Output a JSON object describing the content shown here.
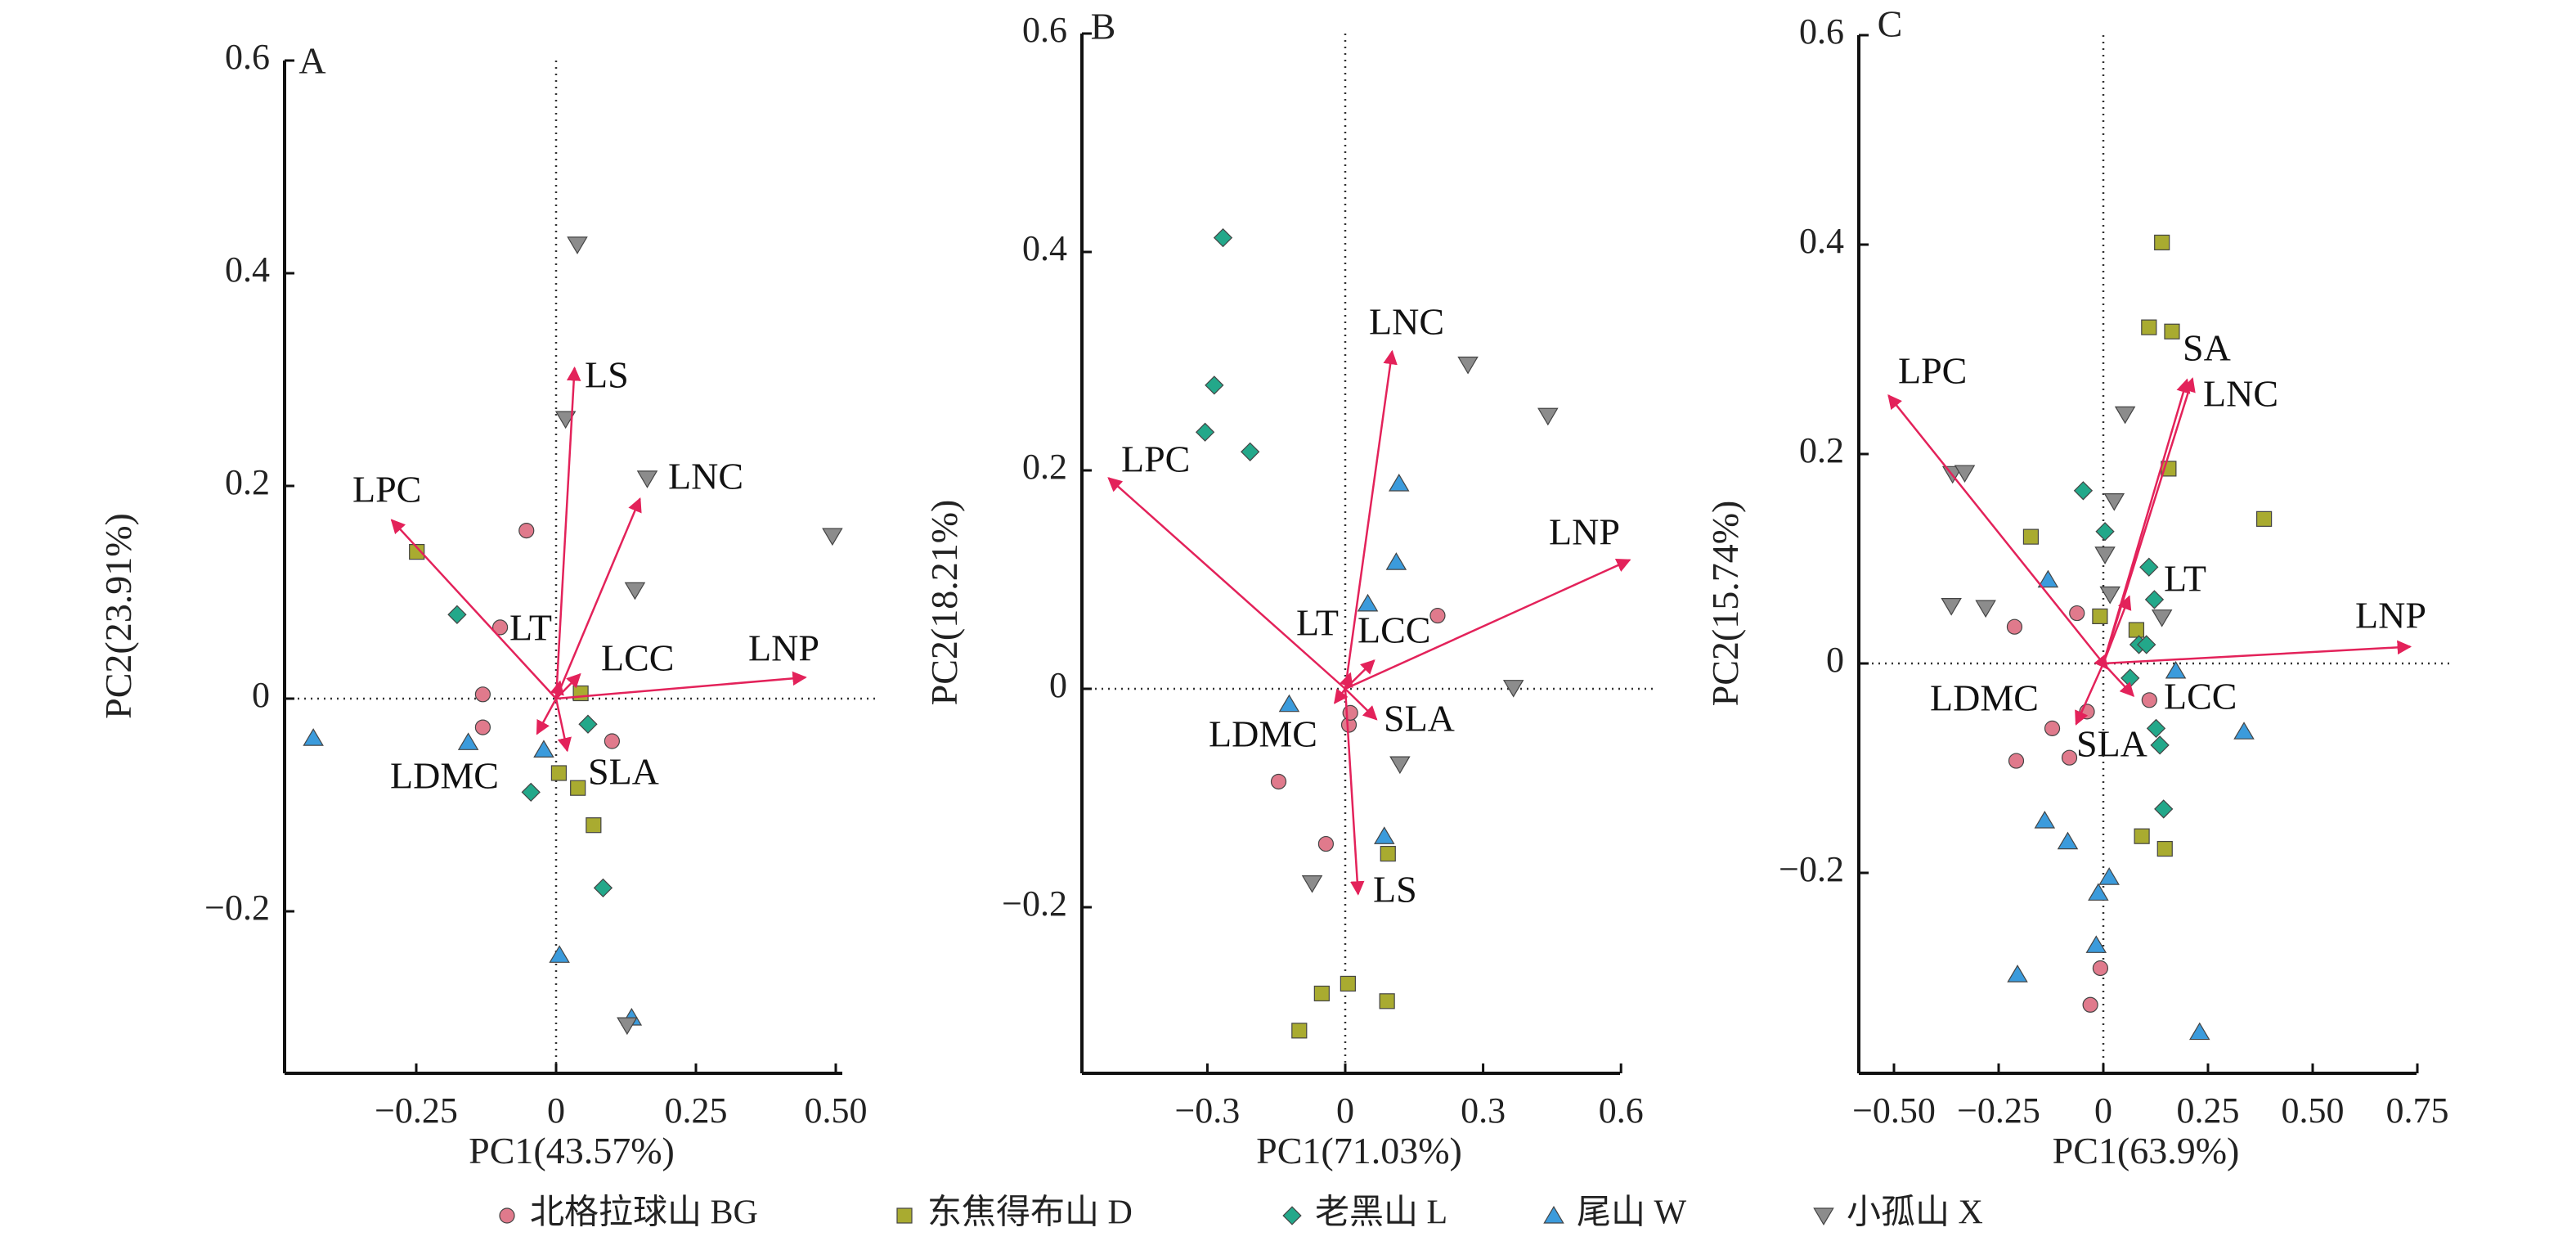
{
  "colors": {
    "BG": "#e07a8c",
    "D": "#a9ab30",
    "L": "#23a88a",
    "W": "#3b9bdc",
    "X": "#8c8c8c",
    "arrow": "#e3225a",
    "axis": "#111111"
  },
  "legend": [
    {
      "group": "BG",
      "marker": "circle",
      "label": "北格拉球山 BG"
    },
    {
      "group": "D",
      "marker": "square",
      "label": "东焦得布山 D"
    },
    {
      "group": "L",
      "marker": "diamond",
      "label": "老黑山 L"
    },
    {
      "group": "W",
      "marker": "triangle-up",
      "label": "尾山 W"
    },
    {
      "group": "X",
      "marker": "triangle-down",
      "label": "小孤山 X"
    }
  ],
  "chart_data": [
    {
      "type": "scatter",
      "panel": "A",
      "xlabel": "PC1(43.57%)",
      "ylabel": "PC2(23.91%)",
      "xlim": [
        -0.485,
        0.51
      ],
      "ylim": [
        -0.343,
        0.6
      ],
      "xticks": [
        {
          "v": -0.25,
          "t": "−0.25"
        },
        {
          "v": 0,
          "t": "0"
        },
        {
          "v": 0.25,
          "t": "0.25"
        },
        {
          "v": 0.5,
          "t": "0.50"
        }
      ],
      "yticks": [
        {
          "v": -0.2,
          "t": "−0.2"
        },
        {
          "v": 0,
          "t": "0"
        },
        {
          "v": 0.2,
          "t": "0.2"
        },
        {
          "v": 0.4,
          "t": "0.4"
        },
        {
          "v": 0.6,
          "t": "0.6"
        }
      ],
      "points": [
        {
          "g": "BG",
          "x": -0.053,
          "y": 0.158
        },
        {
          "g": "BG",
          "x": -0.1,
          "y": 0.067
        },
        {
          "g": "BG",
          "x": -0.131,
          "y": 0.004
        },
        {
          "g": "BG",
          "x": -0.131,
          "y": -0.027
        },
        {
          "g": "BG",
          "x": 0.1,
          "y": -0.04
        },
        {
          "g": "D",
          "x": -0.249,
          "y": 0.138
        },
        {
          "g": "D",
          "x": 0.044,
          "y": 0.005
        },
        {
          "g": "D",
          "x": 0.005,
          "y": -0.07
        },
        {
          "g": "D",
          "x": 0.039,
          "y": -0.084
        },
        {
          "g": "D",
          "x": 0.067,
          "y": -0.119
        },
        {
          "g": "L",
          "x": -0.177,
          "y": 0.079
        },
        {
          "g": "L",
          "x": 0.057,
          "y": -0.024
        },
        {
          "g": "L",
          "x": -0.045,
          "y": -0.088
        },
        {
          "g": "L",
          "x": 0.084,
          "y": -0.178
        },
        {
          "g": "W",
          "x": -0.434,
          "y": -0.037
        },
        {
          "g": "W",
          "x": -0.157,
          "y": -0.041
        },
        {
          "g": "W",
          "x": -0.022,
          "y": -0.048
        },
        {
          "g": "W",
          "x": 0.006,
          "y": -0.241
        },
        {
          "g": "W",
          "x": 0.135,
          "y": -0.3
        },
        {
          "g": "X",
          "x": 0.038,
          "y": 0.427
        },
        {
          "g": "X",
          "x": 0.017,
          "y": 0.263
        },
        {
          "g": "X",
          "x": 0.163,
          "y": 0.207
        },
        {
          "g": "X",
          "x": 0.494,
          "y": 0.153
        },
        {
          "g": "X",
          "x": 0.141,
          "y": 0.102
        },
        {
          "g": "X",
          "x": 0.127,
          "y": -0.307
        }
      ],
      "loadings": [
        {
          "name": "LS",
          "x": 0.033,
          "y": 0.311
        },
        {
          "name": "LNC",
          "x": 0.15,
          "y": 0.188
        },
        {
          "name": "LPC",
          "x": -0.294,
          "y": 0.168
        },
        {
          "name": "LNP",
          "x": 0.446,
          "y": 0.02
        },
        {
          "name": "LT",
          "x": 0.007,
          "y": 0.016
        },
        {
          "name": "LCC",
          "x": 0.043,
          "y": 0.023
        },
        {
          "name": "LDMC",
          "x": -0.034,
          "y": -0.033
        },
        {
          "name": "SLA",
          "x": 0.02,
          "y": -0.049
        }
      ]
    },
    {
      "type": "scatter",
      "panel": "B",
      "xlabel": "PC1(71.03%)",
      "ylabel": "PC2(18.21%)",
      "xlim": [
        -0.567,
        0.6
      ],
      "ylim": [
        -0.353,
        0.6
      ],
      "xticks": [
        {
          "v": -0.3,
          "t": "−0.3"
        },
        {
          "v": 0,
          "t": "0"
        },
        {
          "v": 0.3,
          "t": "0.3"
        },
        {
          "v": 0.6,
          "t": "0.6"
        }
      ],
      "yticks": [
        {
          "v": -0.2,
          "t": "−0.2"
        },
        {
          "v": 0,
          "t": "0"
        },
        {
          "v": 0.2,
          "t": "0.2"
        },
        {
          "v": 0.4,
          "t": "0.4"
        },
        {
          "v": 0.6,
          "t": "0.6"
        }
      ],
      "points": [
        {
          "g": "BG",
          "x": -0.145,
          "y": -0.085
        },
        {
          "g": "BG",
          "x": -0.042,
          "y": -0.142
        },
        {
          "g": "BG",
          "x": 0.008,
          "y": -0.033
        },
        {
          "g": "BG",
          "x": 0.011,
          "y": -0.022
        },
        {
          "g": "BG",
          "x": 0.201,
          "y": 0.067
        },
        {
          "g": "D",
          "x": 0.093,
          "y": -0.151
        },
        {
          "g": "D",
          "x": -0.051,
          "y": -0.279
        },
        {
          "g": "D",
          "x": 0.006,
          "y": -0.27
        },
        {
          "g": "D",
          "x": 0.091,
          "y": -0.286
        },
        {
          "g": "D",
          "x": -0.1,
          "y": -0.313
        },
        {
          "g": "L",
          "x": -0.266,
          "y": 0.413
        },
        {
          "g": "L",
          "x": -0.285,
          "y": 0.278
        },
        {
          "g": "L",
          "x": -0.207,
          "y": 0.217
        },
        {
          "g": "L",
          "x": -0.305,
          "y": 0.235
        },
        {
          "g": "W",
          "x": 0.117,
          "y": 0.188
        },
        {
          "g": "W",
          "x": 0.111,
          "y": 0.116
        },
        {
          "g": "W",
          "x": 0.049,
          "y": 0.078
        },
        {
          "g": "W",
          "x": -0.122,
          "y": -0.014
        },
        {
          "g": "W",
          "x": 0.085,
          "y": -0.135
        },
        {
          "g": "X",
          "x": 0.267,
          "y": 0.297
        },
        {
          "g": "X",
          "x": 0.441,
          "y": 0.25
        },
        {
          "g": "X",
          "x": 0.366,
          "y": 0.001
        },
        {
          "g": "X",
          "x": 0.119,
          "y": -0.069
        },
        {
          "g": "X",
          "x": -0.072,
          "y": -0.178
        }
      ],
      "loadings": [
        {
          "name": "LNC",
          "x": 0.102,
          "y": 0.309
        },
        {
          "name": "LPC",
          "x": -0.515,
          "y": 0.193
        },
        {
          "name": "LNP",
          "x": 0.619,
          "y": 0.118
        },
        {
          "name": "LT",
          "x": 0.011,
          "y": 0.014
        },
        {
          "name": "LCC",
          "x": 0.063,
          "y": 0.026
        },
        {
          "name": "SLA",
          "x": 0.068,
          "y": -0.028
        },
        {
          "name": "LDMC",
          "x": -0.023,
          "y": -0.013
        },
        {
          "name": "LS",
          "x": 0.028,
          "y": -0.188
        }
      ]
    },
    {
      "type": "scatter",
      "panel": "C",
      "xlabel": "PC1(63.9%)",
      "ylabel": "PC2(15.74%)",
      "xlim": [
        -0.585,
        0.75
      ],
      "ylim": [
        -0.392,
        0.6
      ],
      "xticks": [
        {
          "v": -0.5,
          "t": "−0.50"
        },
        {
          "v": -0.25,
          "t": "−0.25"
        },
        {
          "v": 0,
          "t": "0"
        },
        {
          "v": 0.25,
          "t": "0.25"
        },
        {
          "v": 0.5,
          "t": "0.50"
        },
        {
          "v": 0.75,
          "t": "0.75"
        }
      ],
      "yticks": [
        {
          "v": -0.2,
          "t": "−0.2"
        },
        {
          "v": 0,
          "t": "0"
        },
        {
          "v": 0.2,
          "t": "0.2"
        },
        {
          "v": 0.4,
          "t": "0.4"
        },
        {
          "v": 0.6,
          "t": "0.6"
        }
      ],
      "points": [
        {
          "g": "BG",
          "x": -0.212,
          "y": 0.035
        },
        {
          "g": "BG",
          "x": -0.063,
          "y": 0.048
        },
        {
          "g": "BG",
          "x": 0.11,
          "y": -0.035
        },
        {
          "g": "BG",
          "x": -0.122,
          "y": -0.062
        },
        {
          "g": "BG",
          "x": -0.208,
          "y": -0.093
        },
        {
          "g": "BG",
          "x": -0.081,
          "y": -0.09
        },
        {
          "g": "BG",
          "x": -0.039,
          "y": -0.046
        },
        {
          "g": "BG",
          "x": -0.007,
          "y": -0.291
        },
        {
          "g": "BG",
          "x": -0.031,
          "y": -0.326
        },
        {
          "g": "D",
          "x": 0.14,
          "y": 0.402
        },
        {
          "g": "D",
          "x": 0.109,
          "y": 0.321
        },
        {
          "g": "D",
          "x": 0.164,
          "y": 0.317
        },
        {
          "g": "D",
          "x": 0.156,
          "y": 0.186
        },
        {
          "g": "D",
          "x": 0.384,
          "y": 0.138
        },
        {
          "g": "D",
          "x": -0.173,
          "y": 0.121
        },
        {
          "g": "D",
          "x": -0.008,
          "y": 0.045
        },
        {
          "g": "D",
          "x": 0.079,
          "y": 0.032
        },
        {
          "g": "D",
          "x": 0.092,
          "y": -0.165
        },
        {
          "g": "D",
          "x": 0.147,
          "y": -0.177
        },
        {
          "g": "L",
          "x": -0.048,
          "y": 0.165
        },
        {
          "g": "L",
          "x": 0.004,
          "y": 0.126
        },
        {
          "g": "L",
          "x": 0.109,
          "y": 0.092
        },
        {
          "g": "L",
          "x": 0.122,
          "y": 0.061
        },
        {
          "g": "L",
          "x": 0.085,
          "y": 0.018
        },
        {
          "g": "L",
          "x": 0.103,
          "y": 0.018
        },
        {
          "g": "L",
          "x": 0.064,
          "y": -0.014
        },
        {
          "g": "L",
          "x": 0.126,
          "y": -0.062
        },
        {
          "g": "L",
          "x": 0.135,
          "y": -0.078
        },
        {
          "g": "L",
          "x": 0.144,
          "y": -0.139
        },
        {
          "g": "W",
          "x": -0.132,
          "y": 0.08
        },
        {
          "g": "W",
          "x": 0.173,
          "y": -0.007
        },
        {
          "g": "W",
          "x": 0.336,
          "y": -0.065
        },
        {
          "g": "W",
          "x": -0.14,
          "y": -0.15
        },
        {
          "g": "W",
          "x": -0.085,
          "y": -0.17
        },
        {
          "g": "W",
          "x": 0.014,
          "y": -0.204
        },
        {
          "g": "W",
          "x": -0.012,
          "y": -0.219
        },
        {
          "g": "W",
          "x": -0.017,
          "y": -0.269
        },
        {
          "g": "W",
          "x": -0.205,
          "y": -0.297
        },
        {
          "g": "W",
          "x": 0.23,
          "y": -0.352
        },
        {
          "g": "X",
          "x": 0.052,
          "y": 0.238
        },
        {
          "g": "X",
          "x": -0.36,
          "y": 0.181
        },
        {
          "g": "X",
          "x": -0.331,
          "y": 0.182
        },
        {
          "g": "X",
          "x": 0.026,
          "y": 0.155
        },
        {
          "g": "X",
          "x": 0.004,
          "y": 0.104
        },
        {
          "g": "X",
          "x": 0.016,
          "y": 0.066
        },
        {
          "g": "X",
          "x": 0.14,
          "y": 0.044
        },
        {
          "g": "X",
          "x": -0.363,
          "y": 0.055
        },
        {
          "g": "X",
          "x": -0.281,
          "y": 0.053
        }
      ],
      "loadings": [
        {
          "name": "LPC",
          "x": -0.513,
          "y": 0.256
        },
        {
          "name": "SA",
          "x": 0.213,
          "y": 0.272
        },
        {
          "name": "LNC",
          "x": 0.2,
          "y": 0.271
        },
        {
          "name": "LNP",
          "x": 0.733,
          "y": 0.016
        },
        {
          "name": "LT",
          "x": 0.062,
          "y": 0.064
        },
        {
          "name": "LCC",
          "x": 0.072,
          "y": -0.031
        },
        {
          "name": "SLA",
          "x": -0.065,
          "y": -0.058
        },
        {
          "name": "LDMC",
          "x": 0.01,
          "y": -0.005
        }
      ]
    }
  ]
}
